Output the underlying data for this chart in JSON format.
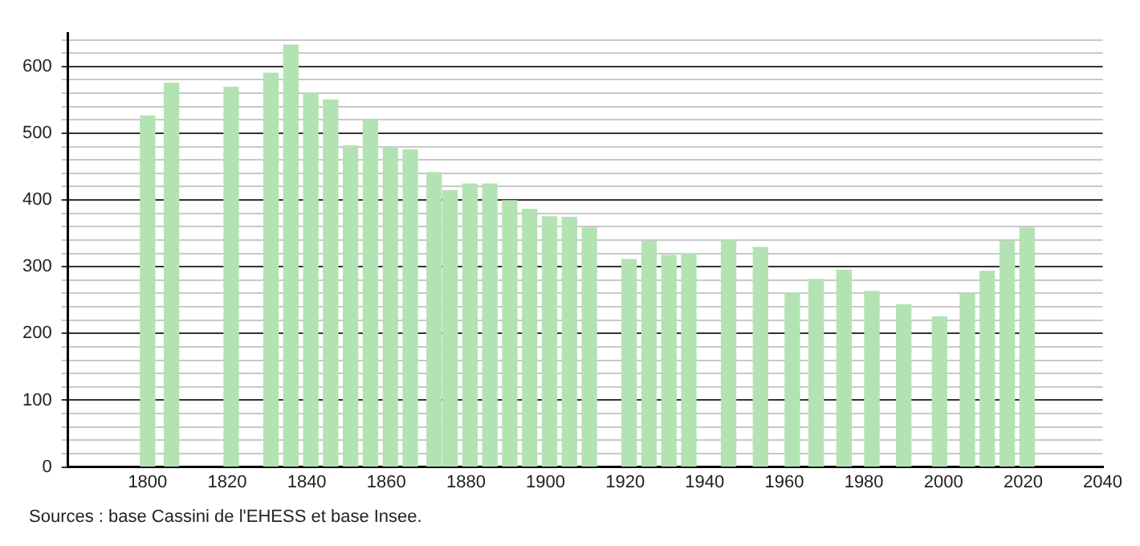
{
  "chart_data": {
    "type": "bar",
    "x": [
      1800,
      1806,
      1821,
      1831,
      1836,
      1841,
      1846,
      1851,
      1856,
      1861,
      1866,
      1872,
      1876,
      1881,
      1886,
      1891,
      1896,
      1901,
      1906,
      1911,
      1921,
      1926,
      1931,
      1936,
      1946,
      1954,
      1962,
      1968,
      1975,
      1982,
      1990,
      1999,
      2006,
      2011,
      2016,
      2021
    ],
    "values": [
      526,
      575,
      569,
      590,
      632,
      560,
      550,
      481,
      520,
      479,
      475,
      441,
      414,
      424,
      424,
      399,
      386,
      375,
      374,
      358,
      311,
      338,
      317,
      320,
      340,
      329,
      261,
      281,
      295,
      263,
      243,
      225,
      259,
      293,
      338,
      358
    ],
    "color": "#b3e3b3",
    "xlim": [
      1780,
      2040
    ],
    "xticks": [
      1800,
      1820,
      1840,
      1860,
      1880,
      1900,
      1920,
      1940,
      1960,
      1980,
      2000,
      2020,
      2040
    ],
    "ylim": [
      0,
      650
    ],
    "yticks": [
      0,
      {
        "value": 20,
        "label": null
      },
      {
        "value": 40,
        "label": null
      },
      {
        "value": 60,
        "label": null
      },
      {
        "value": 80,
        "label": null
      },
      100,
      {
        "value": 120,
        "label": null
      },
      {
        "value": 140,
        "label": null
      },
      {
        "value": 160,
        "label": null
      },
      {
        "value": 180,
        "label": null
      },
      200,
      {
        "value": 220,
        "label": null
      },
      {
        "value": 240,
        "label": null
      },
      {
        "value": 260,
        "label": null
      },
      {
        "value": 280,
        "label": null
      },
      300,
      {
        "value": 320,
        "label": null
      },
      {
        "value": 340,
        "label": null
      },
      {
        "value": 360,
        "label": null
      },
      {
        "value": 380,
        "label": null
      },
      400,
      {
        "value": 420,
        "label": null
      },
      {
        "value": 440,
        "label": null
      },
      {
        "value": 460,
        "label": null
      },
      {
        "value": 480,
        "label": null
      },
      500,
      {
        "value": 520,
        "label": null
      },
      {
        "value": 540,
        "label": null
      },
      {
        "value": 560,
        "label": null
      },
      {
        "value": 580,
        "label": null
      },
      600,
      {
        "value": 620,
        "label": null
      },
      {
        "value": 640,
        "label": null
      }
    ],
    "grid": "y",
    "legend": false,
    "annotations": [
      "Sources : base Cassini de l'EHESS et base Insee."
    ]
  }
}
